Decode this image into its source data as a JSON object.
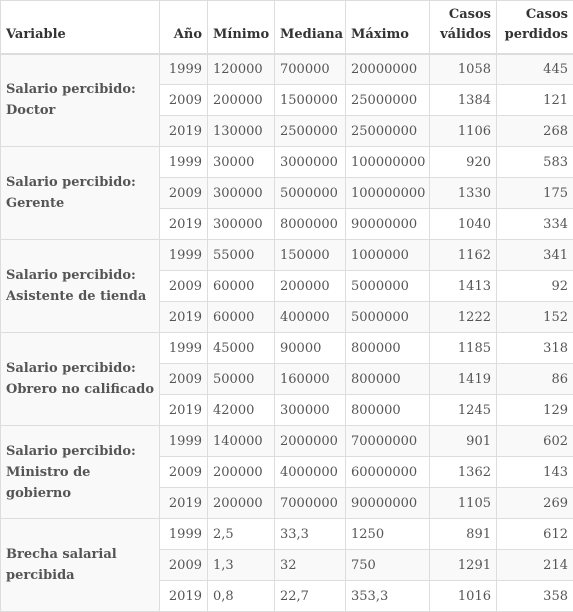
{
  "headers": {
    "variable": "Variable",
    "year": "Año",
    "min": "Mínimo",
    "median": "Mediana",
    "max": "Máximo",
    "valid": "Casos válidos",
    "missing": "Casos perdidos"
  },
  "groups": [
    {
      "label": "Salario percibido: Doctor",
      "rows": [
        {
          "year": "1999",
          "min": "120000",
          "median": "700000",
          "max": "20000000",
          "valid": "1058",
          "missing": "445"
        },
        {
          "year": "2009",
          "min": "200000",
          "median": "1500000",
          "max": "25000000",
          "valid": "1384",
          "missing": "121"
        },
        {
          "year": "2019",
          "min": "130000",
          "median": "2500000",
          "max": "25000000",
          "valid": "1106",
          "missing": "268"
        }
      ]
    },
    {
      "label": "Salario percibido: Gerente",
      "rows": [
        {
          "year": "1999",
          "min": "30000",
          "median": "3000000",
          "max": "100000000",
          "valid": "920",
          "missing": "583"
        },
        {
          "year": "2009",
          "min": "300000",
          "median": "5000000",
          "max": "100000000",
          "valid": "1330",
          "missing": "175"
        },
        {
          "year": "2019",
          "min": "300000",
          "median": "8000000",
          "max": "90000000",
          "valid": "1040",
          "missing": "334"
        }
      ]
    },
    {
      "label": "Salario percibido: Asistente de tienda",
      "rows": [
        {
          "year": "1999",
          "min": "55000",
          "median": "150000",
          "max": "1000000",
          "valid": "1162",
          "missing": "341"
        },
        {
          "year": "2009",
          "min": "60000",
          "median": "200000",
          "max": "5000000",
          "valid": "1413",
          "missing": "92"
        },
        {
          "year": "2019",
          "min": "60000",
          "median": "400000",
          "max": "5000000",
          "valid": "1222",
          "missing": "152"
        }
      ]
    },
    {
      "label": "Salario percibido: Obrero no calificado",
      "rows": [
        {
          "year": "1999",
          "min": "45000",
          "median": "90000",
          "max": "800000",
          "valid": "1185",
          "missing": "318"
        },
        {
          "year": "2009",
          "min": "50000",
          "median": "160000",
          "max": "800000",
          "valid": "1419",
          "missing": "86"
        },
        {
          "year": "2019",
          "min": "42000",
          "median": "300000",
          "max": "800000",
          "valid": "1245",
          "missing": "129"
        }
      ]
    },
    {
      "label": "Salario percibido: Ministro de gobierno",
      "rows": [
        {
          "year": "1999",
          "min": "140000",
          "median": "2000000",
          "max": "70000000",
          "valid": "901",
          "missing": "602"
        },
        {
          "year": "2009",
          "min": "200000",
          "median": "4000000",
          "max": "60000000",
          "valid": "1362",
          "missing": "143"
        },
        {
          "year": "2019",
          "min": "200000",
          "median": "7000000",
          "max": "90000000",
          "valid": "1105",
          "missing": "269"
        }
      ]
    },
    {
      "label": "Brecha salarial percibida",
      "rows": [
        {
          "year": "1999",
          "min": "2,5",
          "median": "33,3",
          "max": "1250",
          "valid": "891",
          "missing": "612"
        },
        {
          "year": "2009",
          "min": "1,3",
          "median": "32",
          "max": "750",
          "valid": "1291",
          "missing": "214"
        },
        {
          "year": "2019",
          "min": "0,8",
          "median": "22,7",
          "max": "353,3",
          "valid": "1016",
          "missing": "358"
        }
      ]
    }
  ]
}
